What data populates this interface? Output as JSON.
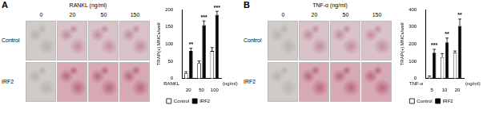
{
  "panels": [
    {
      "label": "A",
      "header": "RANKL (ng/ml)",
      "columns": [
        "0",
        "20",
        "50",
        "150"
      ],
      "rows": [
        "Control",
        "IRF2"
      ]
    },
    {
      "label": "B",
      "header": "TNF-α (ng/ml)",
      "columns": [
        "0",
        "20",
        "50",
        "150"
      ],
      "rows": [
        "Control",
        "IRF2"
      ]
    }
  ],
  "chart_data": [
    {
      "type": "bar",
      "y_label": "TRAP(+) MNCs/well",
      "x_label": "RANKL",
      "x_unit": "(ng/ml)",
      "categories": [
        "20",
        "50",
        "100"
      ],
      "series": [
        {
          "name": "Control",
          "color": "#ffffff",
          "values": [
            15,
            45,
            80
          ],
          "errors": [
            5,
            6,
            10
          ]
        },
        {
          "name": "IRF2",
          "color": "#000000",
          "values": [
            80,
            155,
            185
          ],
          "errors": [
            8,
            12,
            10
          ]
        }
      ],
      "significance": [
        "**",
        "***",
        "***"
      ],
      "ylim": [
        0,
        200
      ],
      "yticks": [
        0,
        50,
        100,
        150,
        200
      ],
      "grid": false,
      "legend": "bottom"
    },
    {
      "type": "bar",
      "y_label": "TRAP(+) MNCs/well",
      "x_label": "TNF-α",
      "x_unit": "(ng/ml)",
      "categories": [
        "5",
        "10",
        "20"
      ],
      "series": [
        {
          "name": "Control",
          "color": "#ffffff",
          "values": [
            10,
            125,
            150
          ],
          "errors": [
            5,
            20,
            10
          ]
        },
        {
          "name": "IRF2",
          "color": "#000000",
          "values": [
            150,
            210,
            305
          ],
          "errors": [
            20,
            25,
            40
          ]
        }
      ],
      "significance": [
        "***",
        "**",
        "**"
      ],
      "ylim": [
        0,
        400
      ],
      "yticks": [
        0,
        100,
        200,
        300,
        400
      ],
      "grid": false,
      "legend": "bottom"
    }
  ]
}
